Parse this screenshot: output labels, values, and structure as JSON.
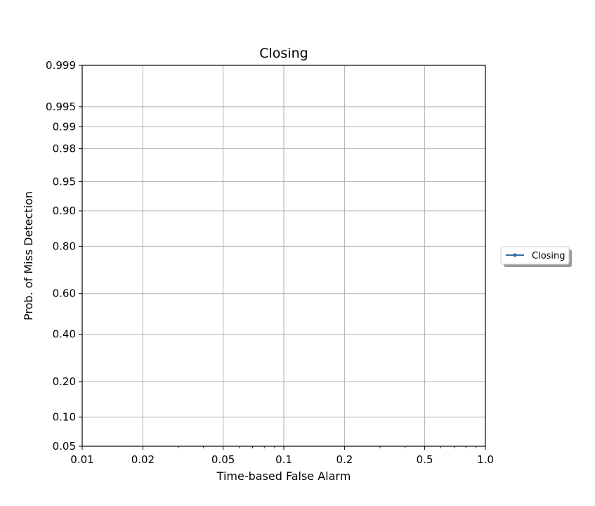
{
  "chart_data": {
    "type": "line",
    "title": "Closing",
    "xlabel": "Time-based False Alarm",
    "ylabel": "Prob. of Miss Detection",
    "x_scale": "log",
    "y_scale": "probit",
    "xlim": [
      0.01,
      1.0
    ],
    "ylim": [
      0.05,
      0.999
    ],
    "x_ticks": [
      0.01,
      0.02,
      0.05,
      0.1,
      0.2,
      0.5,
      1.0
    ],
    "x_tick_labels": [
      "0.01",
      "0.02",
      "0.05",
      "0.1",
      "0.2",
      "0.5",
      "1.0"
    ],
    "y_ticks": [
      0.05,
      0.1,
      0.2,
      0.4,
      0.6,
      0.8,
      0.9,
      0.95,
      0.98,
      0.99,
      0.995,
      0.999
    ],
    "y_tick_labels": [
      "0.05",
      "0.10",
      "0.20",
      "0.40",
      "0.60",
      "0.80",
      "0.90",
      "0.95",
      "0.98",
      "0.99",
      "0.995",
      "0.999"
    ],
    "grid": true,
    "legend_position": "outside right",
    "series": [
      {
        "name": "Closing",
        "color": "#2f6ea4",
        "marker": "dot",
        "x": [],
        "y": []
      }
    ]
  }
}
